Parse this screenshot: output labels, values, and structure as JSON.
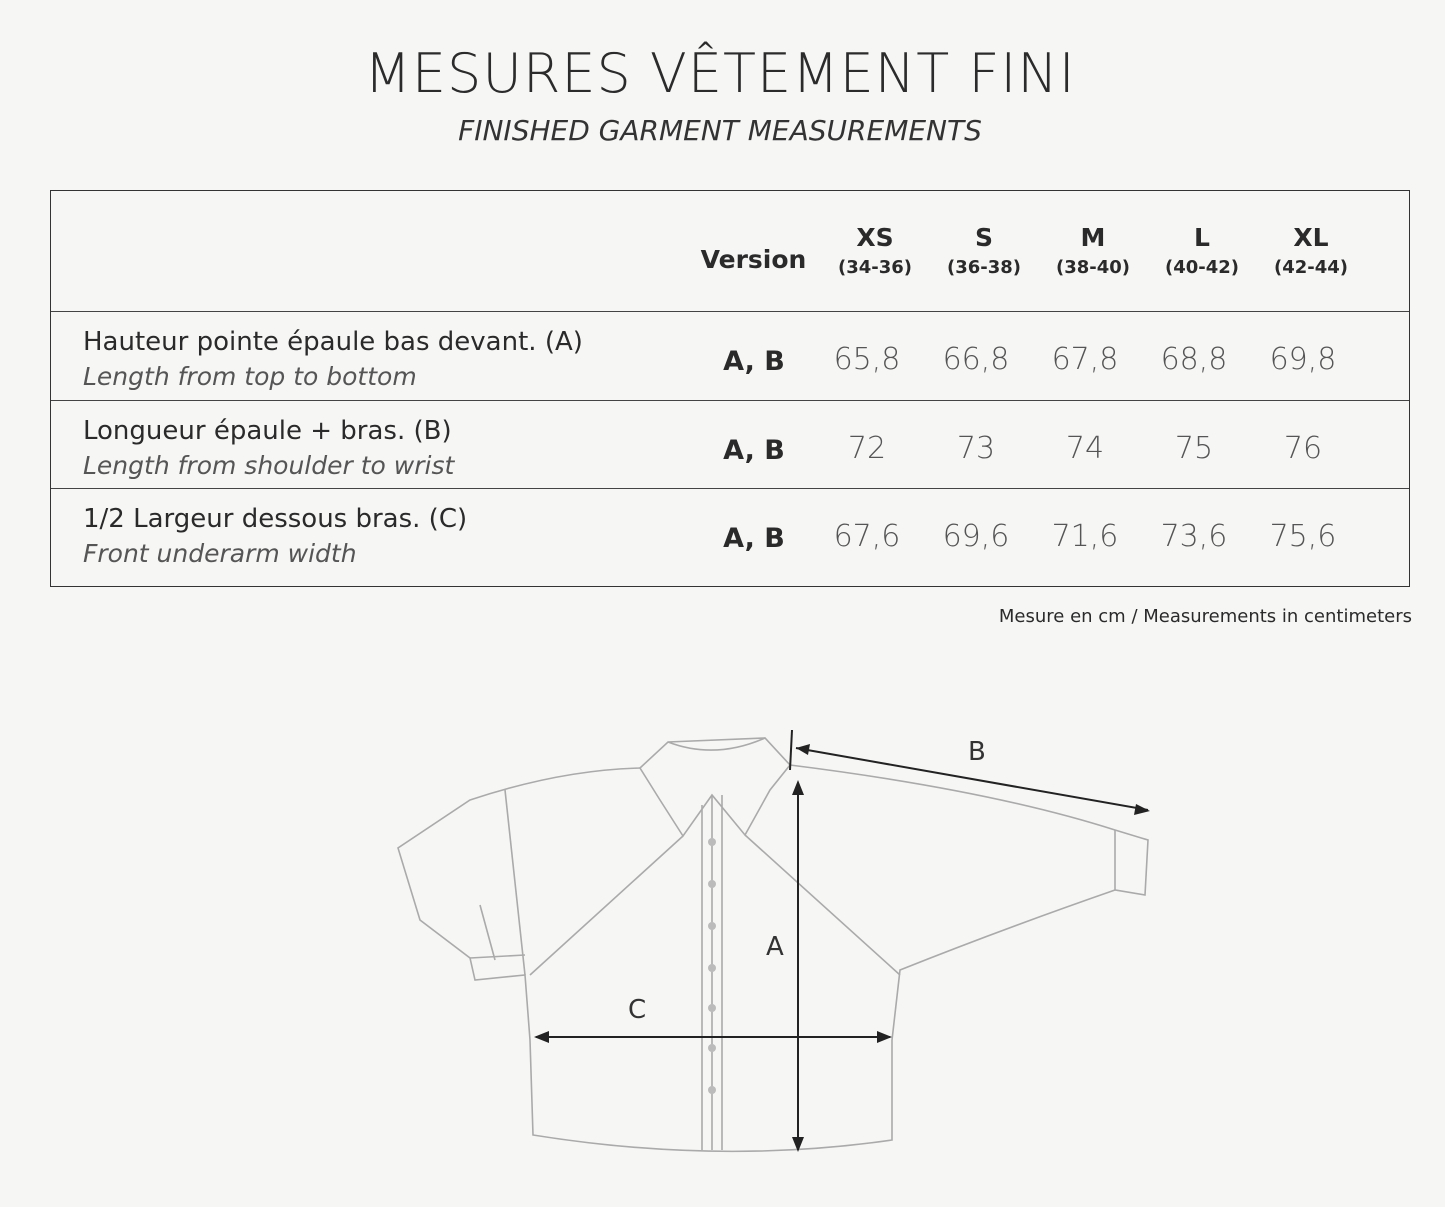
{
  "title": "MESURES VÊTEMENT FINI",
  "subtitle": "FINISHED GARMENT MEASUREMENTS",
  "table": {
    "version_header": "Version",
    "sizes": [
      {
        "size": "XS",
        "range": "(34-36)"
      },
      {
        "size": "S",
        "range": "(36-38)"
      },
      {
        "size": "M",
        "range": "(38-40)"
      },
      {
        "size": "L",
        "range": "(40-42)"
      },
      {
        "size": "XL",
        "range": "(42-44)"
      }
    ],
    "rows": [
      {
        "label": "Hauteur pointe épaule bas devant. (A)",
        "sublabel": "Length from top to bottom",
        "version": "A, B",
        "values": [
          "65,8",
          "66,8",
          "67,8",
          "68,8",
          "69,8"
        ]
      },
      {
        "label": "Longueur épaule + bras. (B)",
        "sublabel": "Length from shoulder to wrist",
        "version": "A, B",
        "values": [
          "72",
          "73",
          "74",
          "75",
          "76"
        ]
      },
      {
        "label": "1/2 Largeur dessous bras. (C)",
        "sublabel": "Front underarm width",
        "version": "A, B",
        "values": [
          "67,6",
          "69,6",
          "71,6",
          "73,6",
          "75,6"
        ]
      }
    ]
  },
  "note": "Mesure en cm / Measurements in centimeters",
  "diagram": {
    "label_a": "A",
    "label_b": "B",
    "label_c": "C"
  }
}
